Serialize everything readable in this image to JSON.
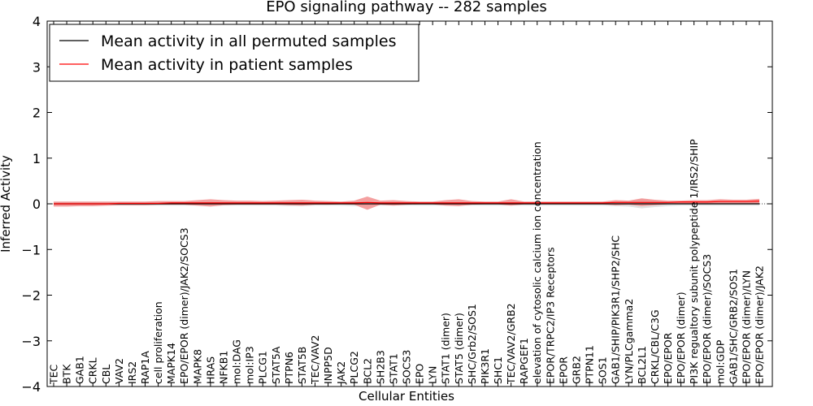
{
  "chart_data": {
    "type": "line",
    "title": "EPO signaling pathway -- 282 samples",
    "xlabel": "Cellular Entities",
    "ylabel": "Inferred Activity",
    "ylim": [
      -4,
      4
    ],
    "yticks": [
      -4,
      -3,
      -2,
      -1,
      0,
      1,
      2,
      3,
      4
    ],
    "categories": [
      "TEC",
      "BTK",
      "GAB1",
      "CRKL",
      "CBL",
      "VAV2",
      "IRS2",
      "RAP1A",
      "cell proliferation",
      "MAPK14",
      "EPO/EPOR (dimer)/JAK2/SOCS3",
      "MAPK8",
      "HRAS",
      "NFKB1",
      "mol:DAG",
      "mol:IP3",
      "PLCG1",
      "STAT5A",
      "PTPN6",
      "STAT5B",
      "TEC/VAV2",
      "INPP5D",
      "JAK2",
      "PLCG2",
      "BCL2",
      "SH2B3",
      "STAT1",
      "SOCS3",
      "EPO",
      "LYN",
      "STAT1 (dimer)",
      "STAT5 (dimer)",
      "SHC/Grb2/SOS1",
      "PIK3R1",
      "SHC1",
      "TEC/VAV2/GRB2",
      "RAPGEF1",
      "elevation of cytosolic calcium ion concentration",
      "EPOR/TRPC2/IP3 Receptors",
      "EPOR",
      "GRB2",
      "PTPN11",
      "SOS1",
      "GAB1/SHIP/PIK3R1/SHP2/SHC",
      "LYN/PLCgamma2",
      "BCL2L1",
      "CRKL/CBL/C3G",
      "EPO/EPOR",
      "EPO/EPOR (dimer)",
      "PI3K regualtory subunit polypeptide 1/IRS2/SHIP",
      "EPO/EPOR (dimer)/SOCS3",
      "mol:GDP",
      "GAB1/SHC/GRB2/SOS1",
      "EPO/EPOR (dimer)/LYN",
      "EPO/EPOR (dimer)/JAK2"
    ],
    "series": [
      {
        "name": "Mean activity in all permuted samples",
        "color": "#000000",
        "values": [
          0.0,
          0.0,
          0.0,
          0.0,
          0.0,
          0.0,
          0.0,
          0.0,
          0.0,
          0.0,
          0.0,
          0.0,
          0.0,
          0.0,
          0.0,
          0.0,
          0.0,
          0.0,
          0.0,
          0.0,
          0.0,
          0.0,
          0.0,
          0.0,
          0.0,
          0.0,
          0.0,
          0.0,
          0.0,
          0.0,
          0.0,
          0.0,
          0.0,
          0.0,
          0.0,
          0.0,
          0.0,
          0.0,
          0.0,
          0.0,
          0.0,
          0.0,
          0.0,
          0.0,
          0.0,
          0.0,
          0.0,
          0.0,
          0.0,
          0.0,
          0.0,
          0.0,
          0.0,
          0.0,
          0.0
        ],
        "band": [
          0.04,
          0.04,
          0.04,
          0.04,
          0.04,
          0.04,
          0.04,
          0.04,
          0.04,
          0.04,
          0.04,
          0.04,
          0.05,
          0.04,
          0.04,
          0.04,
          0.04,
          0.04,
          0.05,
          0.05,
          0.04,
          0.04,
          0.04,
          0.05,
          0.04,
          0.04,
          0.04,
          0.04,
          0.04,
          0.04,
          0.04,
          0.04,
          0.04,
          0.04,
          0.04,
          0.04,
          0.04,
          0.04,
          0.04,
          0.04,
          0.04,
          0.04,
          0.04,
          0.05,
          0.06,
          0.1,
          0.07,
          0.05,
          0.04,
          0.04,
          0.04,
          0.04,
          0.04,
          0.04,
          0.04
        ],
        "band_color": "#d9d9d9"
      },
      {
        "name": "Mean activity in patient samples",
        "color": "#ff0000",
        "values": [
          0.0,
          0.0,
          0.0,
          0.0,
          0.0,
          0.01,
          0.01,
          0.01,
          0.01,
          0.02,
          0.02,
          0.02,
          0.02,
          0.02,
          0.02,
          0.02,
          0.02,
          0.02,
          0.02,
          0.02,
          0.02,
          0.02,
          0.02,
          0.02,
          0.03,
          0.02,
          0.02,
          0.02,
          0.02,
          0.02,
          0.02,
          0.02,
          0.02,
          0.02,
          0.02,
          0.02,
          0.02,
          0.02,
          0.02,
          0.02,
          0.02,
          0.02,
          0.02,
          0.03,
          0.03,
          0.03,
          0.03,
          0.03,
          0.04,
          0.04,
          0.04,
          0.05,
          0.05,
          0.05,
          0.06
        ],
        "upper": [
          0.05,
          0.05,
          0.05,
          0.05,
          0.05,
          0.05,
          0.05,
          0.05,
          0.06,
          0.06,
          0.06,
          0.08,
          0.1,
          0.08,
          0.07,
          0.07,
          0.06,
          0.07,
          0.08,
          0.09,
          0.07,
          0.06,
          0.05,
          0.07,
          0.16,
          0.07,
          0.08,
          0.06,
          0.05,
          0.05,
          0.08,
          0.1,
          0.06,
          0.05,
          0.05,
          0.1,
          0.05,
          0.05,
          0.05,
          0.05,
          0.05,
          0.05,
          0.05,
          0.08,
          0.07,
          0.12,
          0.09,
          0.07,
          0.07,
          0.08,
          0.08,
          0.1,
          0.09,
          0.09,
          0.11
        ],
        "lower": [
          -0.06,
          -0.06,
          -0.05,
          -0.05,
          -0.04,
          -0.03,
          -0.03,
          -0.03,
          -0.02,
          -0.02,
          -0.02,
          -0.04,
          -0.06,
          -0.03,
          -0.02,
          -0.02,
          -0.02,
          -0.02,
          -0.03,
          -0.04,
          -0.02,
          -0.02,
          -0.01,
          -0.02,
          -0.13,
          -0.02,
          -0.04,
          -0.02,
          -0.01,
          -0.01,
          -0.04,
          -0.05,
          -0.02,
          -0.01,
          -0.01,
          -0.04,
          -0.01,
          -0.01,
          -0.01,
          -0.01,
          -0.01,
          -0.01,
          -0.01,
          -0.03,
          -0.02,
          -0.05,
          -0.03,
          -0.01,
          0.0,
          0.0,
          0.0,
          0.0,
          0.0,
          0.0,
          0.0
        ],
        "band_color": "#f08080"
      }
    ],
    "legend": {
      "position": "top-left",
      "entries": [
        "Mean activity in all permuted samples",
        "Mean activity in patient samples"
      ]
    },
    "grid": false
  }
}
